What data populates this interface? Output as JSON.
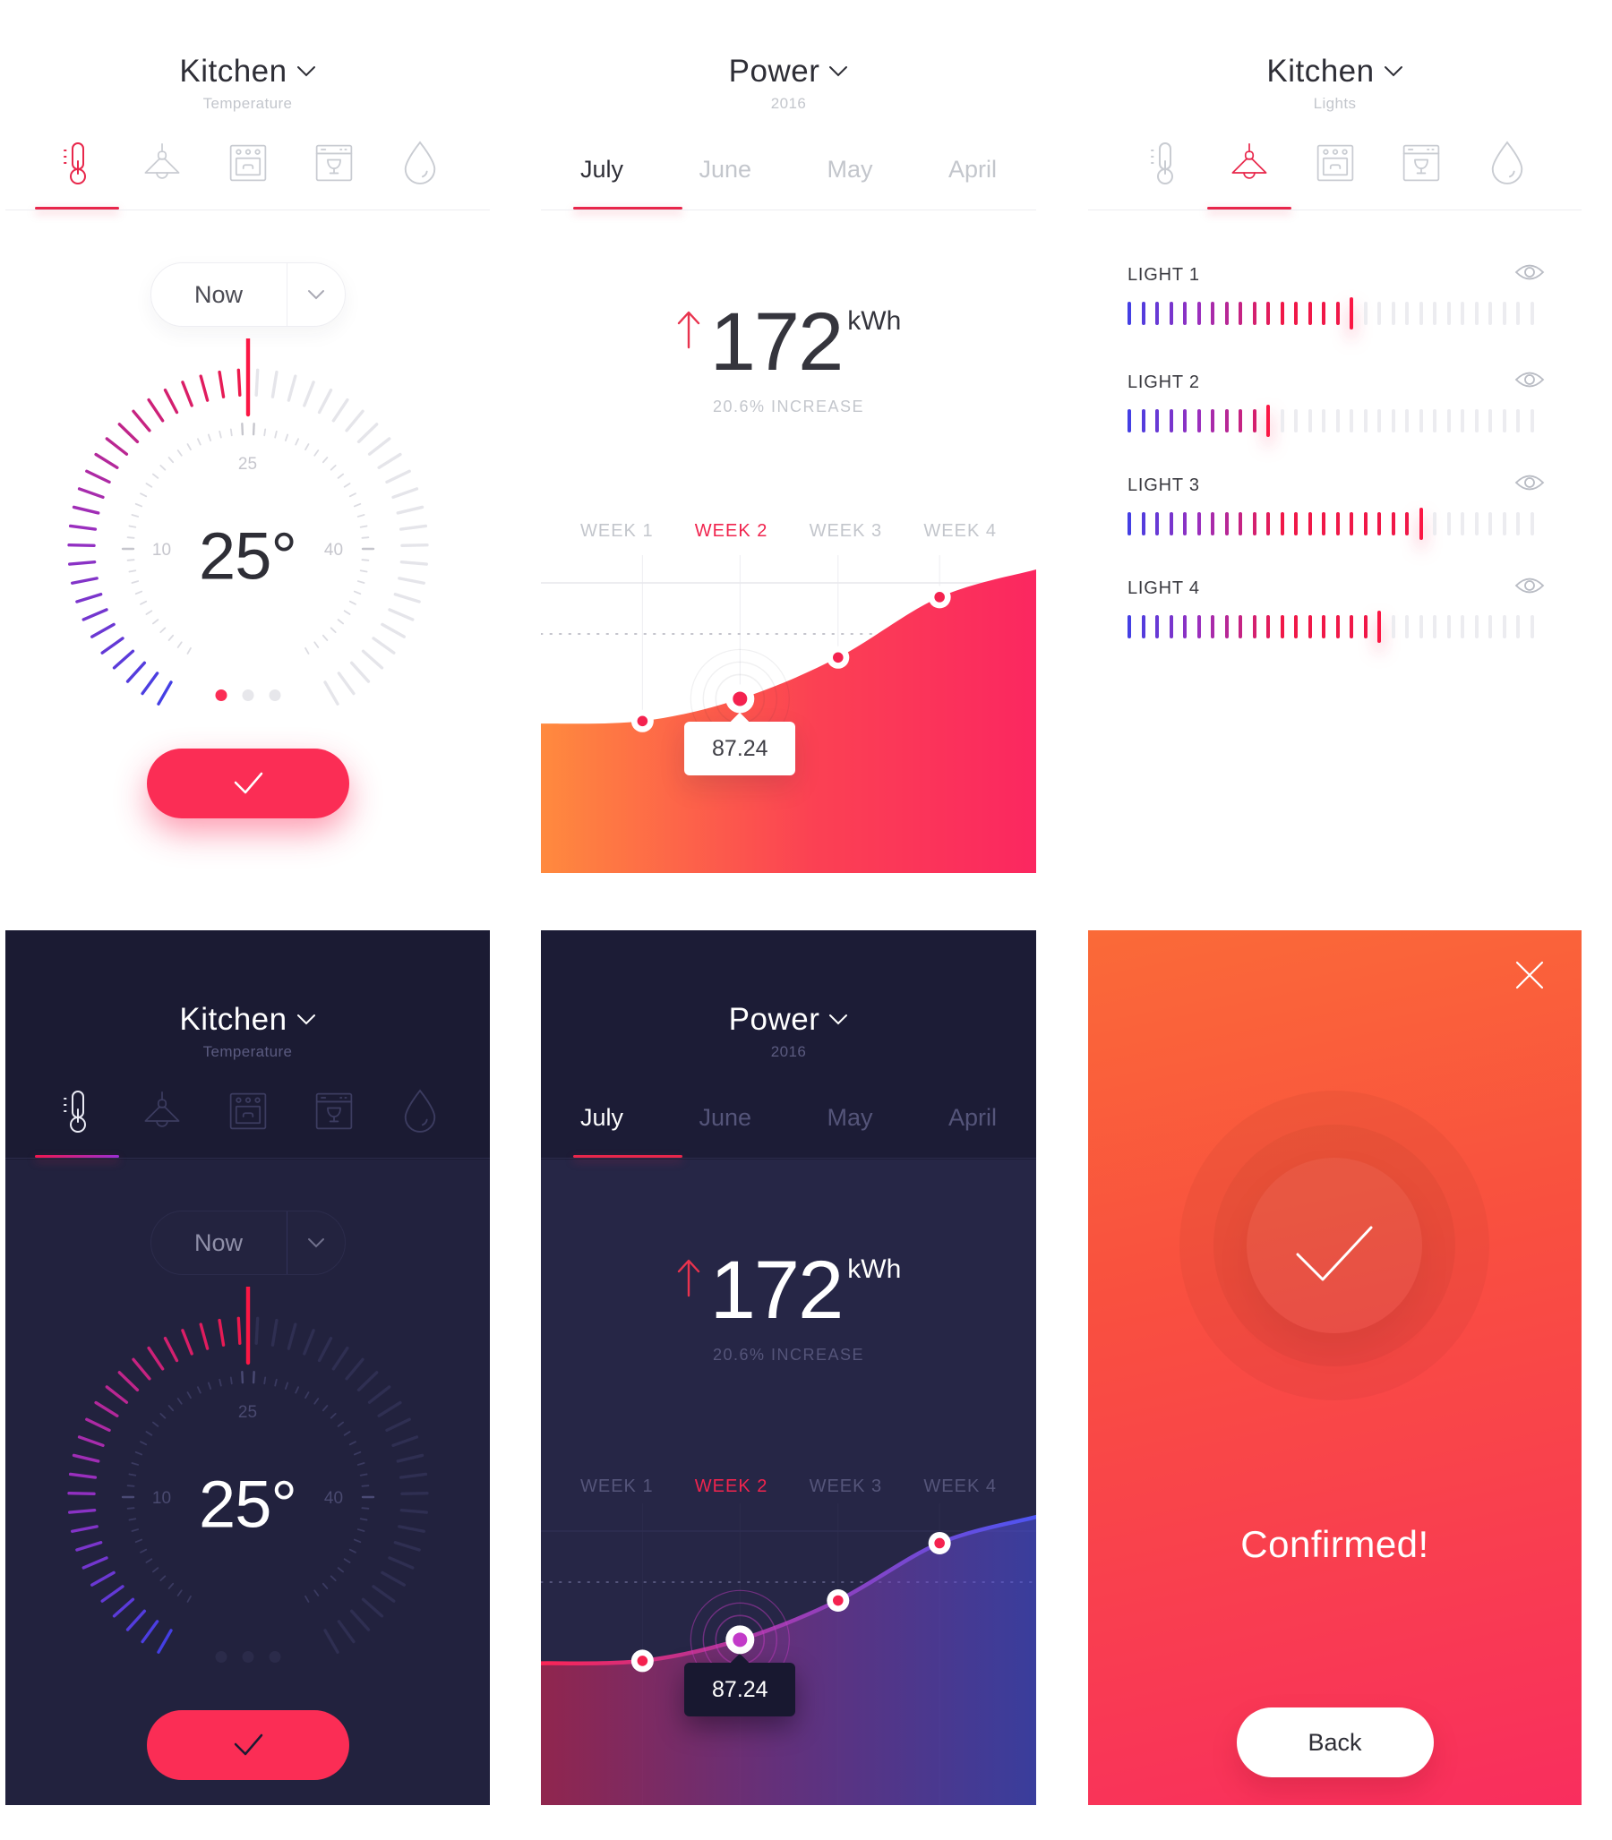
{
  "colors": {
    "accent": "#fb2d55",
    "accent_red": "#ef1d4e",
    "gradient_blue": "#4440e0",
    "gradient_purple": "#9a2fbe",
    "dark_header": "#1b1b33",
    "dark_body": "#22223e",
    "confirm_gradient_top": "#fa6a38",
    "confirm_gradient_bottom": "#f92e5e"
  },
  "device_icons": [
    "thermometer",
    "lamp",
    "oven",
    "dishwasher",
    "drop"
  ],
  "screens": {
    "temp_light": {
      "title": "Kitchen",
      "subtitle": "Temperature",
      "active_icon": 0,
      "time_selector": {
        "label": "Now"
      },
      "dial": {
        "value": 25,
        "value_label": "25°",
        "min_label": "10",
        "mid_label": "25",
        "max_label": "40"
      },
      "dots": {
        "count": 3,
        "active": 0
      }
    },
    "power_light": {
      "title": "Power",
      "subtitle": "2016",
      "months": [
        "July",
        "June",
        "May",
        "April"
      ],
      "active_month": 0,
      "stat": {
        "direction": "up",
        "value": "172",
        "unit": "kWh",
        "change": "20.6% INCREASE"
      },
      "weeks": [
        "WEEK 1",
        "WEEK 2",
        "WEEK 3",
        "WEEK 4"
      ],
      "active_week": 1,
      "chart_data": {
        "type": "area",
        "x": [
          "WEEK 1",
          "WEEK 2",
          "WEEK 3",
          "WEEK 4"
        ],
        "values": [
          78,
          87.24,
          112,
          146
        ],
        "ylim": [
          0,
          172
        ],
        "grid": true,
        "tooltip": {
          "x": "WEEK 2",
          "value": "87.24"
        },
        "curve": [
          [
            0,
            0.53
          ],
          [
            0.205,
            0.522
          ],
          [
            0.402,
            0.452
          ],
          [
            0.6,
            0.322
          ],
          [
            0.805,
            0.132
          ],
          [
            1,
            0.045
          ]
        ]
      }
    },
    "lights": {
      "title": "Kitchen",
      "subtitle": "Lights",
      "active_icon": 1,
      "rows": [
        {
          "name": "LIGHT 1",
          "level": 17,
          "total": 30
        },
        {
          "name": "LIGHT 2",
          "level": 11,
          "total": 30
        },
        {
          "name": "LIGHT 3",
          "level": 22,
          "total": 30
        },
        {
          "name": "LIGHT 4",
          "level": 19,
          "total": 30
        }
      ]
    },
    "temp_dark": {
      "title": "Kitchen",
      "subtitle": "Temperature",
      "active_icon": 0,
      "time_selector": {
        "label": "Now"
      },
      "dial": {
        "value": 25,
        "value_label": "25°",
        "min_label": "10",
        "mid_label": "25",
        "max_label": "40"
      },
      "dots": {
        "count": 3,
        "active": 0
      }
    },
    "power_dark": {
      "title": "Power",
      "subtitle": "2016",
      "months": [
        "July",
        "June",
        "May",
        "April"
      ],
      "active_month": 0,
      "stat": {
        "direction": "up",
        "value": "172",
        "unit": "kWh",
        "change": "20.6% INCREASE"
      },
      "weeks": [
        "WEEK 1",
        "WEEK 2",
        "WEEK 3",
        "WEEK 4"
      ],
      "active_week": 1,
      "chart_data": {
        "type": "area",
        "x": [
          "WEEK 1",
          "WEEK 2",
          "WEEK 3",
          "WEEK 4"
        ],
        "values": [
          78,
          87.24,
          112,
          146
        ],
        "ylim": [
          0,
          172
        ],
        "grid": true,
        "tooltip": {
          "x": "WEEK 2",
          "value": "87.24"
        },
        "curve": [
          [
            0,
            0.53
          ],
          [
            0.205,
            0.522
          ],
          [
            0.402,
            0.452
          ],
          [
            0.6,
            0.322
          ],
          [
            0.805,
            0.132
          ],
          [
            1,
            0.045
          ]
        ]
      }
    },
    "confirmed": {
      "message": "Confirmed!",
      "back_label": "Back"
    }
  }
}
